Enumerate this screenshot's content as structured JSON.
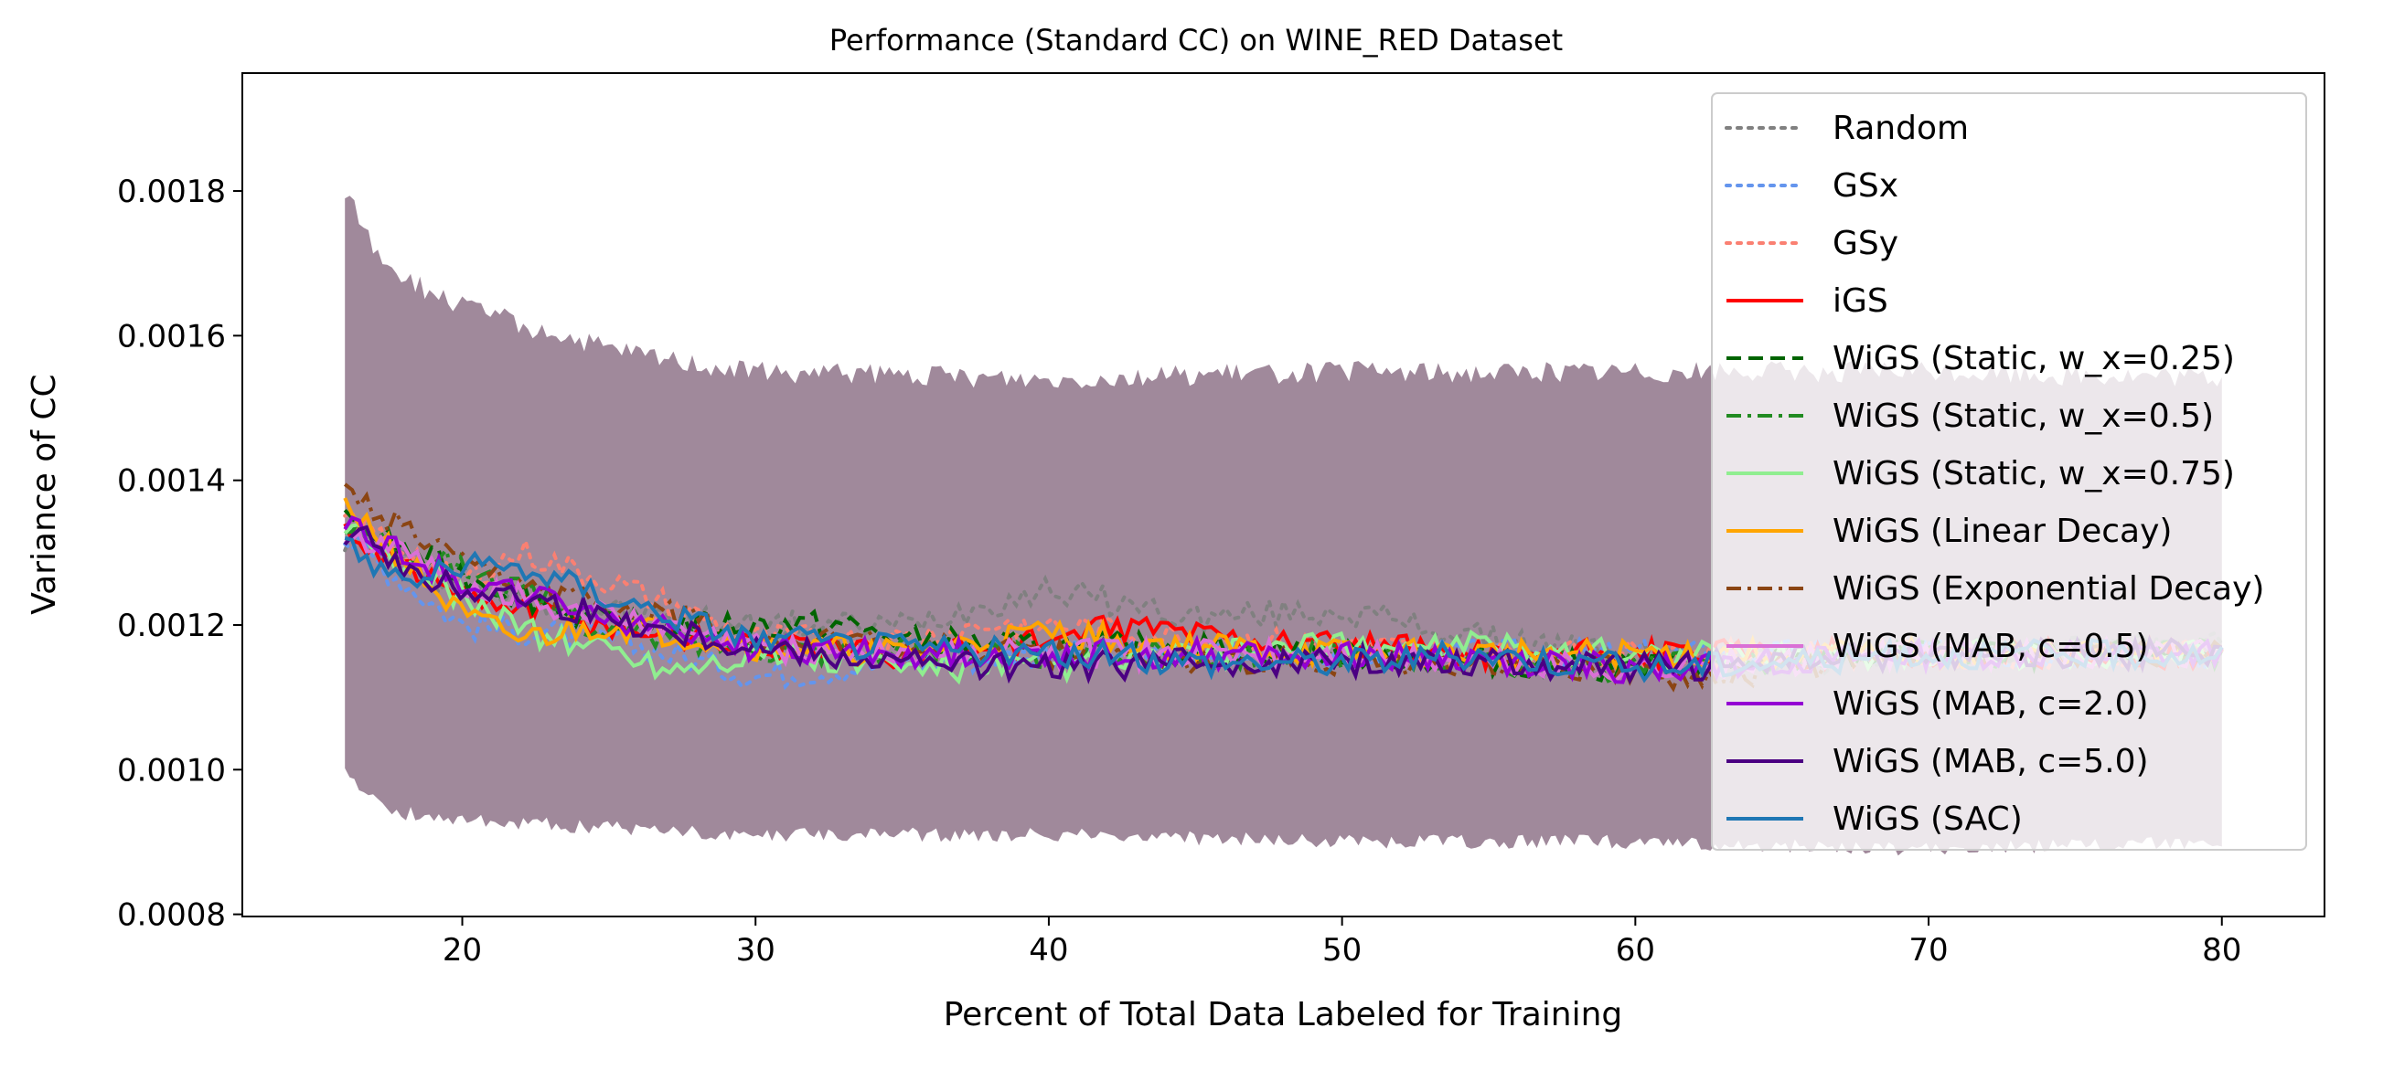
{
  "chart_data": {
    "type": "line",
    "title": "Performance (Standard CC) on WINE_RED Dataset",
    "xlabel": "Percent of Total Data Labeled for Training",
    "ylabel": "Variance of CC",
    "xlim": [
      12.5,
      83.5
    ],
    "ylim": [
      0.000797,
      0.001963
    ],
    "xticks": [
      20,
      30,
      40,
      50,
      60,
      70,
      80
    ],
    "xtick_labels": [
      "20",
      "30",
      "40",
      "50",
      "60",
      "70",
      "80"
    ],
    "yticks": [
      0.0008,
      0.001,
      0.0012,
      0.0014,
      0.0016,
      0.0018
    ],
    "ytick_labels": [
      "0.0008",
      "0.0010",
      "0.0012",
      "0.0014",
      "0.0016",
      "0.0018"
    ],
    "grid": false,
    "legend_position": "upper right",
    "shaded_band": {
      "x": [
        16,
        17,
        18,
        20,
        25,
        30,
        40,
        50,
        60,
        70,
        80
      ],
      "lower": [
        0.001,
        0.00096,
        0.00094,
        0.00093,
        0.00092,
        0.00091,
        0.00091,
        0.0009,
        0.0009,
        0.00089,
        0.0009
      ],
      "upper": [
        0.0018,
        0.00172,
        0.00168,
        0.00164,
        0.00158,
        0.00155,
        0.00154,
        0.00155,
        0.00155,
        0.00155,
        0.00154
      ],
      "color": "#9b8396"
    },
    "series": [
      {
        "name": "Random",
        "color": "#808080",
        "style": "dotted",
        "x": [
          16,
          20,
          25,
          30,
          35,
          40,
          45,
          50,
          55,
          60,
          65,
          70,
          75,
          80
        ],
        "y": [
          0.00132,
          0.00125,
          0.00122,
          0.0012,
          0.0012,
          0.00125,
          0.00121,
          0.00122,
          0.00118,
          0.00116,
          0.00115,
          0.00116,
          0.00117,
          0.00117
        ]
      },
      {
        "name": "GSx",
        "color": "#6495ed",
        "style": "dotted",
        "x": [
          16,
          20,
          25,
          28,
          30,
          33,
          36,
          40,
          45,
          50,
          55,
          60,
          65,
          70,
          75,
          80
        ],
        "y": [
          0.00132,
          0.0012,
          0.00118,
          0.00115,
          0.00113,
          0.00114,
          0.00115,
          0.00116,
          0.00116,
          0.00116,
          0.00116,
          0.00116,
          0.00116,
          0.00116,
          0.00116,
          0.00116
        ]
      },
      {
        "name": "GSy",
        "color": "#fa8072",
        "style": "dotted",
        "x": [
          16,
          20,
          22,
          25,
          30,
          35,
          38,
          40,
          45,
          50,
          55,
          60,
          65,
          70,
          75,
          80
        ],
        "y": [
          0.00135,
          0.00126,
          0.0013,
          0.00126,
          0.00118,
          0.00118,
          0.0012,
          0.0012,
          0.00118,
          0.00117,
          0.00116,
          0.00116,
          0.00116,
          0.00116,
          0.00116,
          0.00116
        ]
      },
      {
        "name": "iGS",
        "color": "#ff0000",
        "style": "solid",
        "x": [
          16,
          20,
          25,
          30,
          35,
          40,
          43,
          45,
          50,
          55,
          60,
          65,
          70,
          75,
          80
        ],
        "y": [
          0.00133,
          0.00124,
          0.0012,
          0.00117,
          0.00116,
          0.00118,
          0.0012,
          0.00119,
          0.00117,
          0.00116,
          0.00116,
          0.00116,
          0.00116,
          0.00116,
          0.00116
        ]
      },
      {
        "name": "WiGS (Static, w_x=0.25)",
        "color": "#006400",
        "style": "dashed",
        "x": [
          16,
          20,
          25,
          30,
          33,
          35,
          40,
          45,
          50,
          55,
          60,
          65,
          70,
          75,
          80
        ],
        "y": [
          0.00134,
          0.00127,
          0.0012,
          0.0012,
          0.0012,
          0.00118,
          0.00117,
          0.00117,
          0.00116,
          0.00115,
          0.00114,
          0.00115,
          0.00116,
          0.00116,
          0.00116
        ]
      },
      {
        "name": "WiGS (Static, w_x=0.5)",
        "color": "#228b22",
        "style": "dashdot",
        "x": [
          16,
          20,
          25,
          30,
          35,
          40,
          45,
          50,
          55,
          60,
          65,
          70,
          75,
          80
        ],
        "y": [
          0.00134,
          0.00128,
          0.00119,
          0.00117,
          0.00116,
          0.00116,
          0.00116,
          0.00116,
          0.00115,
          0.00114,
          0.00115,
          0.00116,
          0.00116,
          0.00116
        ]
      },
      {
        "name": "WiGS (Static, w_x=0.75)",
        "color": "#90ee90",
        "style": "solid",
        "x": [
          16,
          20,
          23,
          25,
          27,
          30,
          35,
          40,
          45,
          50,
          55,
          60,
          65,
          70,
          75,
          80
        ],
        "y": [
          0.00133,
          0.00124,
          0.00118,
          0.00117,
          0.00114,
          0.00116,
          0.00114,
          0.00114,
          0.00116,
          0.00117,
          0.00117,
          0.00116,
          0.00116,
          0.00116,
          0.00116,
          0.00116
        ]
      },
      {
        "name": "WiGS (Linear Decay)",
        "color": "#ffa500",
        "style": "solid",
        "x": [
          16,
          20,
          22,
          25,
          30,
          35,
          40,
          45,
          50,
          55,
          60,
          65,
          70,
          75,
          80
        ],
        "y": [
          0.00137,
          0.00121,
          0.00118,
          0.0012,
          0.00117,
          0.00116,
          0.00119,
          0.00117,
          0.00116,
          0.00116,
          0.00116,
          0.00116,
          0.00116,
          0.00116,
          0.00116
        ]
      },
      {
        "name": "WiGS (Exponential Decay)",
        "color": "#8b4513",
        "style": "dashdot",
        "x": [
          16,
          20,
          25,
          28,
          30,
          35,
          40,
          45,
          50,
          55,
          60,
          62,
          65,
          70,
          75,
          80
        ],
        "y": [
          0.00138,
          0.00128,
          0.00122,
          0.00121,
          0.00118,
          0.00117,
          0.00116,
          0.00115,
          0.00115,
          0.00115,
          0.00114,
          0.00112,
          0.00114,
          0.00116,
          0.00116,
          0.00116
        ]
      },
      {
        "name": "WiGS (MAB, c=0.5)",
        "color": "#da70d6",
        "style": "solid",
        "x": [
          16,
          20,
          25,
          30,
          35,
          40,
          45,
          50,
          55,
          60,
          65,
          70,
          75,
          80
        ],
        "y": [
          0.00133,
          0.00126,
          0.00121,
          0.00117,
          0.00116,
          0.00116,
          0.00116,
          0.00116,
          0.00115,
          0.00114,
          0.00115,
          0.00116,
          0.00116,
          0.00116
        ]
      },
      {
        "name": "WiGS (MAB, c=2.0)",
        "color": "#9400d3",
        "style": "solid",
        "x": [
          16,
          20,
          25,
          30,
          35,
          40,
          45,
          50,
          55,
          60,
          65,
          70,
          75,
          80
        ],
        "y": [
          0.00134,
          0.00126,
          0.00121,
          0.00117,
          0.00116,
          0.00116,
          0.00116,
          0.00116,
          0.00115,
          0.00114,
          0.00115,
          0.00116,
          0.00116,
          0.00116
        ]
      },
      {
        "name": "WiGS (MAB, c=5.0)",
        "color": "#4b0082",
        "style": "solid",
        "x": [
          16,
          16.5,
          18,
          20,
          22,
          25,
          30,
          35,
          40,
          45,
          50,
          55,
          60,
          65,
          70,
          75,
          80
        ],
        "y": [
          0.00131,
          0.00135,
          0.00127,
          0.00125,
          0.00124,
          0.00121,
          0.00117,
          0.00115,
          0.00114,
          0.00115,
          0.00115,
          0.00115,
          0.00114,
          0.00115,
          0.00116,
          0.00116,
          0.00116
        ]
      },
      {
        "name": "WiGS (SAC)",
        "color": "#1f77b4",
        "style": "solid",
        "x": [
          16,
          18,
          20,
          22,
          25,
          30,
          35,
          40,
          45,
          50,
          55,
          60,
          65,
          70,
          75,
          80
        ],
        "y": [
          0.00131,
          0.00126,
          0.00128,
          0.00128,
          0.00124,
          0.00118,
          0.00117,
          0.00116,
          0.00115,
          0.00115,
          0.00116,
          0.00114,
          0.00115,
          0.00116,
          0.00116,
          0.00116
        ]
      }
    ]
  }
}
